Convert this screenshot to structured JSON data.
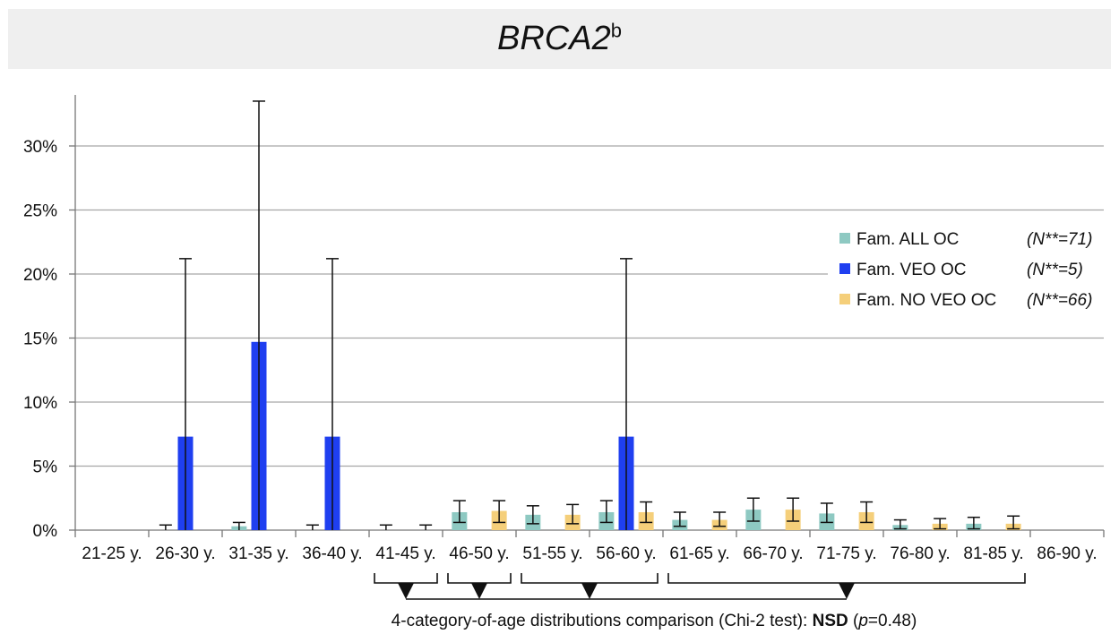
{
  "chart_data": {
    "type": "bar",
    "title": "BRCA2",
    "title_superscript": "b",
    "xlabel": "",
    "ylabel": "",
    "ylim": [
      0,
      35
    ],
    "yticks": [
      "0%",
      "5%",
      "10%",
      "15%",
      "20%",
      "25%",
      "30%"
    ],
    "grid": true,
    "legend_position": "right",
    "categories": [
      "21-25 y.",
      "26-30 y.",
      "31-35 y.",
      "36-40 y.",
      "41-45 y.",
      "46-50 y.",
      "51-55 y.",
      "56-60 y.",
      "61-65 y.",
      "66-70 y.",
      "71-75 y.",
      "76-80 y.",
      "81-85 y.",
      "86-90 y."
    ],
    "series": [
      {
        "name": "Fam. ALL OC",
        "n_label": "(N**=71)",
        "color": "#8ec9c2",
        "values": [
          0,
          0,
          0.3,
          0,
          0,
          1.4,
          1.2,
          1.4,
          0.8,
          1.6,
          1.3,
          0.4,
          0.5,
          0
        ],
        "error_upper": [
          0,
          0.4,
          0.6,
          0.4,
          0.4,
          2.3,
          1.9,
          2.3,
          1.4,
          2.5,
          2.1,
          0.8,
          1.0,
          0
        ],
        "error_lower": [
          0,
          0,
          0,
          0,
          0,
          0.6,
          0.5,
          0.6,
          0.3,
          0.7,
          0.6,
          0.1,
          0.1,
          0
        ]
      },
      {
        "name": "Fam. VEO OC",
        "n_label": "(N**=5)",
        "color": "#1f3ff0",
        "values": [
          0,
          7.3,
          14.7,
          7.3,
          0,
          0,
          0,
          7.3,
          0,
          0,
          0,
          0,
          0,
          0
        ],
        "error_upper": [
          0,
          21.2,
          33.5,
          21.2,
          0,
          0,
          0,
          21.2,
          0,
          0,
          0,
          0,
          0,
          0
        ],
        "error_lower": [
          0,
          0,
          0,
          0,
          0,
          0,
          0,
          0,
          0,
          0,
          0,
          0,
          0,
          0
        ]
      },
      {
        "name": "Fam. NO VEO OC",
        "n_label": "(N**=66)",
        "color": "#f5cf7a",
        "values": [
          0,
          0,
          0,
          0,
          0,
          1.5,
          1.2,
          1.4,
          0.8,
          1.6,
          1.4,
          0.5,
          0.5,
          0
        ],
        "error_upper": [
          0,
          0,
          0,
          0,
          0.4,
          2.3,
          2.0,
          2.2,
          1.4,
          2.5,
          2.2,
          0.9,
          1.1,
          0
        ],
        "error_lower": [
          0,
          0,
          0,
          0,
          0,
          0.6,
          0.5,
          0.6,
          0.3,
          0.7,
          0.6,
          0.1,
          0.1,
          0
        ]
      }
    ],
    "comparison_groups": [
      [
        "41-45 y."
      ],
      [
        "46-50 y."
      ],
      [
        "51-55 y.",
        "56-60 y."
      ],
      [
        "61-65 y.",
        "66-70 y.",
        "71-75 y.",
        "76-80 y.",
        "81-85 y."
      ]
    ],
    "annotation": {
      "prefix": "4-category-of-age distributions comparison (Chi-2 test): ",
      "result": "NSD",
      "paren_open": " (",
      "p_symbol": "p",
      "p_value": "=0.48)"
    }
  }
}
